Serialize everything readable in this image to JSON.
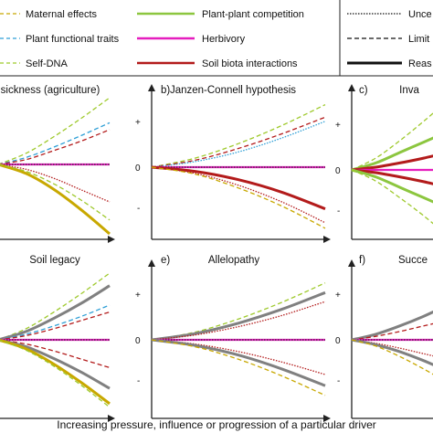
{
  "legend": {
    "colors": [
      {
        "key": "maternal",
        "label": "Maternal effects",
        "color": "#c8a800",
        "dash": "4,3",
        "width": 1.2
      },
      {
        "key": "traits",
        "label": "Plant functional traits",
        "color": "#2e9fd6",
        "dash": "4,3",
        "width": 1.2
      },
      {
        "key": "selfdna",
        "label": "Self-DNA",
        "color": "#9ec92b",
        "dash": "4,3",
        "width": 1.2
      },
      {
        "key": "competition",
        "label": "Plant-plant competition",
        "color": "#8cc63f",
        "dash": "",
        "width": 2.5
      },
      {
        "key": "herbivory",
        "label": "Herbivory",
        "color": "#e51dbe",
        "dash": "",
        "width": 2.5
      },
      {
        "key": "soilbiota",
        "label": "Soil biota interactions",
        "color": "#b31b1b",
        "dash": "",
        "width": 2.5
      }
    ],
    "styles": [
      {
        "label": "Unce",
        "dash": "1.5,1.5",
        "width": 1.2
      },
      {
        "label": "Limit",
        "dash": "5,3",
        "width": 1.2
      },
      {
        "label": "Reas",
        "dash": "",
        "width": 3
      }
    ]
  },
  "x_axis_label": "Increasing pressure, influence or progression of a particular driver",
  "tick_labels": {
    "plus": "+",
    "zero": "0",
    "minus": "-"
  },
  "chart_data": [
    {
      "type": "line",
      "panel": "a",
      "title": "sickness (agriculture)",
      "xlim": [
        0,
        1
      ],
      "ylim": [
        -1,
        1
      ],
      "series": [
        {
          "color": "#9ec92b",
          "style": "dashed",
          "x": [
            0,
            0.25,
            0.5,
            0.75,
            1
          ],
          "y": [
            0,
            0.16,
            0.4,
            0.67,
            0.96
          ]
        },
        {
          "color": "#2e9fd6",
          "style": "dashed",
          "x": [
            0,
            0.25,
            0.5,
            0.75,
            1
          ],
          "y": [
            0,
            0.1,
            0.25,
            0.42,
            0.6
          ]
        },
        {
          "color": "#b31b1b",
          "style": "dashed",
          "x": [
            0,
            0.25,
            0.5,
            0.75,
            1
          ],
          "y": [
            0,
            0.07,
            0.2,
            0.34,
            0.5
          ]
        },
        {
          "color": "#e51dbe",
          "style": "solid",
          "x": [
            0,
            1
          ],
          "y": [
            0,
            0
          ]
        },
        {
          "color": "#333333",
          "style": "dotted",
          "x": [
            0,
            1
          ],
          "y": [
            0,
            0
          ]
        },
        {
          "color": "#b31b1b",
          "style": "dotted",
          "x": [
            0,
            0.25,
            0.5,
            0.75,
            1
          ],
          "y": [
            0,
            -0.07,
            -0.2,
            -0.37,
            -0.54
          ]
        },
        {
          "color": "#c8a800",
          "style": "solid",
          "x": [
            0,
            0.25,
            0.5,
            0.75,
            1
          ],
          "y": [
            0,
            -0.13,
            -0.36,
            -0.66,
            -1.0
          ]
        },
        {
          "color": "#9ec92b",
          "style": "dashed",
          "x": [
            0,
            0.25,
            0.5,
            0.75,
            1
          ],
          "y": [
            0,
            -0.1,
            -0.28,
            -0.52,
            -0.8
          ]
        }
      ]
    },
    {
      "type": "line",
      "panel": "b",
      "title": "Janzen-Connell hypothesis",
      "xlim": [
        0,
        1
      ],
      "ylim": [
        -1,
        1
      ],
      "series": [
        {
          "color": "#9ec92b",
          "style": "dashed",
          "x": [
            0,
            0.25,
            0.5,
            0.75,
            1
          ],
          "y": [
            0,
            0.13,
            0.34,
            0.6,
            0.9
          ]
        },
        {
          "color": "#b31b1b",
          "style": "dashed",
          "x": [
            0,
            0.25,
            0.5,
            0.75,
            1
          ],
          "y": [
            0,
            0.1,
            0.27,
            0.48,
            0.72
          ]
        },
        {
          "color": "#2e9fd6",
          "style": "dotted",
          "x": [
            0,
            0.25,
            0.5,
            0.75,
            1
          ],
          "y": [
            0,
            0.08,
            0.22,
            0.42,
            0.66
          ]
        },
        {
          "color": "#e51dbe",
          "style": "solid",
          "x": [
            0,
            1
          ],
          "y": [
            0,
            0
          ]
        },
        {
          "color": "#333333",
          "style": "dotted",
          "x": [
            0,
            1
          ],
          "y": [
            0,
            0
          ]
        },
        {
          "color": "#b31b1b",
          "style": "solid",
          "x": [
            0,
            0.25,
            0.5,
            0.75,
            1
          ],
          "y": [
            0,
            -0.06,
            -0.18,
            -0.36,
            -0.6
          ]
        },
        {
          "color": "#b31b1b",
          "style": "dotted",
          "x": [
            0,
            0.25,
            0.5,
            0.75,
            1
          ],
          "y": [
            0,
            -0.09,
            -0.26,
            -0.5,
            -0.8
          ]
        },
        {
          "color": "#c8a800",
          "style": "dashed",
          "x": [
            0,
            0.25,
            0.5,
            0.75,
            1
          ],
          "y": [
            0,
            -0.1,
            -0.3,
            -0.56,
            -0.88
          ]
        }
      ]
    },
    {
      "type": "line",
      "panel": "c",
      "title": "Inva",
      "xlim": [
        0,
        1
      ],
      "ylim": [
        -1,
        1
      ],
      "series": [
        {
          "color": "#9ec92b",
          "style": "dashed",
          "x": [
            0,
            0.25,
            0.5,
            0.75,
            1
          ],
          "y": [
            0,
            0.17,
            0.42,
            0.7,
            1.0
          ]
        },
        {
          "color": "#8cc63f",
          "style": "solid",
          "x": [
            0,
            0.25,
            0.5,
            0.75,
            1
          ],
          "y": [
            0,
            0.1,
            0.25,
            0.4,
            0.55
          ]
        },
        {
          "color": "#b31b1b",
          "style": "solid",
          "x": [
            0,
            0.25,
            0.5,
            0.75,
            1
          ],
          "y": [
            0,
            0.04,
            0.1,
            0.17,
            0.25
          ]
        },
        {
          "color": "#e51dbe",
          "style": "solid",
          "x": [
            0,
            1
          ],
          "y": [
            0,
            0
          ]
        },
        {
          "color": "#b31b1b",
          "style": "solid",
          "x": [
            0,
            0.25,
            0.5,
            0.75,
            1
          ],
          "y": [
            0,
            -0.04,
            -0.1,
            -0.17,
            -0.25
          ]
        },
        {
          "color": "#8cc63f",
          "style": "solid",
          "x": [
            0,
            0.25,
            0.5,
            0.75,
            1
          ],
          "y": [
            0,
            -0.1,
            -0.25,
            -0.4,
            -0.55
          ]
        },
        {
          "color": "#9ec92b",
          "style": "dashed",
          "x": [
            0,
            0.25,
            0.5,
            0.75,
            1
          ],
          "y": [
            0,
            -0.16,
            -0.4,
            -0.66,
            -0.95
          ]
        }
      ]
    },
    {
      "type": "line",
      "panel": "d",
      "title": "Soil legacy",
      "xlim": [
        0,
        1
      ],
      "ylim": [
        -1,
        1
      ],
      "series": [
        {
          "color": "#9ec92b",
          "style": "dashed",
          "x": [
            0,
            0.25,
            0.5,
            0.75,
            1
          ],
          "y": [
            0,
            0.16,
            0.4,
            0.67,
            0.96
          ]
        },
        {
          "color": "#808080",
          "style": "solid",
          "x": [
            0,
            0.25,
            0.5,
            0.75,
            1
          ],
          "y": [
            0,
            0.12,
            0.31,
            0.53,
            0.78
          ]
        },
        {
          "color": "#2e9fd6",
          "style": "dashed",
          "x": [
            0,
            0.25,
            0.5,
            0.75,
            1
          ],
          "y": [
            0,
            0.08,
            0.2,
            0.34,
            0.5
          ]
        },
        {
          "color": "#b31b1b",
          "style": "dashed",
          "x": [
            0,
            0.25,
            0.5,
            0.75,
            1
          ],
          "y": [
            0,
            0.06,
            0.16,
            0.28,
            0.4
          ]
        },
        {
          "color": "#e51dbe",
          "style": "solid",
          "x": [
            0,
            1
          ],
          "y": [
            0,
            0
          ]
        },
        {
          "color": "#333333",
          "style": "dotted",
          "x": [
            0,
            1
          ],
          "y": [
            0,
            0
          ]
        },
        {
          "color": "#b31b1b",
          "style": "dashed",
          "x": [
            0,
            0.25,
            0.5,
            0.75,
            1
          ],
          "y": [
            0,
            -0.06,
            -0.16,
            -0.28,
            -0.4
          ]
        },
        {
          "color": "#808080",
          "style": "solid",
          "x": [
            0,
            0.25,
            0.5,
            0.75,
            1
          ],
          "y": [
            0,
            -0.1,
            -0.27,
            -0.47,
            -0.7
          ]
        },
        {
          "color": "#c8a800",
          "style": "solid",
          "x": [
            0,
            0.25,
            0.5,
            0.75,
            1
          ],
          "y": [
            0,
            -0.13,
            -0.35,
            -0.62,
            -0.92
          ]
        },
        {
          "color": "#9ec92b",
          "style": "dashed",
          "x": [
            0,
            0.25,
            0.5,
            0.75,
            1
          ],
          "y": [
            0,
            -0.15,
            -0.38,
            -0.66,
            -0.97
          ]
        }
      ]
    },
    {
      "type": "line",
      "panel": "e",
      "title": "Allelopathy",
      "xlim": [
        0,
        1
      ],
      "ylim": [
        -1,
        1
      ],
      "series": [
        {
          "color": "#9ec92b",
          "style": "dashed",
          "x": [
            0,
            0.25,
            0.5,
            0.75,
            1
          ],
          "y": [
            0,
            0.11,
            0.3,
            0.54,
            0.82
          ]
        },
        {
          "color": "#808080",
          "style": "solid",
          "x": [
            0,
            0.25,
            0.5,
            0.75,
            1
          ],
          "y": [
            0,
            0.09,
            0.24,
            0.44,
            0.68
          ]
        },
        {
          "color": "#b31b1b",
          "style": "dotted",
          "x": [
            0,
            0.25,
            0.5,
            0.75,
            1
          ],
          "y": [
            0,
            0.07,
            0.19,
            0.35,
            0.55
          ]
        },
        {
          "color": "#e51dbe",
          "style": "solid",
          "x": [
            0,
            1
          ],
          "y": [
            0,
            0
          ]
        },
        {
          "color": "#333333",
          "style": "dotted",
          "x": [
            0,
            1
          ],
          "y": [
            0,
            0
          ]
        },
        {
          "color": "#b31b1b",
          "style": "dotted",
          "x": [
            0,
            0.25,
            0.5,
            0.75,
            1
          ],
          "y": [
            0,
            -0.06,
            -0.17,
            -0.32,
            -0.5
          ]
        },
        {
          "color": "#808080",
          "style": "solid",
          "x": [
            0,
            0.25,
            0.5,
            0.75,
            1
          ],
          "y": [
            0,
            -0.08,
            -0.22,
            -0.42,
            -0.66
          ]
        },
        {
          "color": "#c8a800",
          "style": "dashed",
          "x": [
            0,
            0.25,
            0.5,
            0.75,
            1
          ],
          "y": [
            0,
            -0.1,
            -0.28,
            -0.52,
            -0.8
          ]
        }
      ]
    },
    {
      "type": "line",
      "panel": "f",
      "title": "Succe",
      "xlim": [
        0,
        1
      ],
      "ylim": [
        -1,
        1
      ],
      "series": [
        {
          "color": "#808080",
          "style": "solid",
          "x": [
            0,
            0.25,
            0.5,
            0.75,
            1
          ],
          "y": [
            0,
            0.08,
            0.2,
            0.34,
            0.5
          ]
        },
        {
          "color": "#b31b1b",
          "style": "dashed",
          "x": [
            0,
            0.25,
            0.5,
            0.75,
            1
          ],
          "y": [
            0,
            0.05,
            0.12,
            0.2,
            0.28
          ]
        },
        {
          "color": "#e51dbe",
          "style": "solid",
          "x": [
            0,
            1
          ],
          "y": [
            0,
            0
          ]
        },
        {
          "color": "#333333",
          "style": "dotted",
          "x": [
            0,
            1
          ],
          "y": [
            0,
            0
          ]
        },
        {
          "color": "#b31b1b",
          "style": "dotted",
          "x": [
            0,
            0.25,
            0.5,
            0.75,
            1
          ],
          "y": [
            0,
            -0.05,
            -0.12,
            -0.2,
            -0.28
          ]
        },
        {
          "color": "#808080",
          "style": "solid",
          "x": [
            0,
            0.25,
            0.5,
            0.75,
            1
          ],
          "y": [
            0,
            -0.07,
            -0.17,
            -0.3,
            -0.45
          ]
        },
        {
          "color": "#c8a800",
          "style": "dashed",
          "x": [
            0,
            0.25,
            0.5,
            0.75,
            1
          ],
          "y": [
            0,
            -0.09,
            -0.24,
            -0.42,
            -0.62
          ]
        }
      ]
    }
  ]
}
